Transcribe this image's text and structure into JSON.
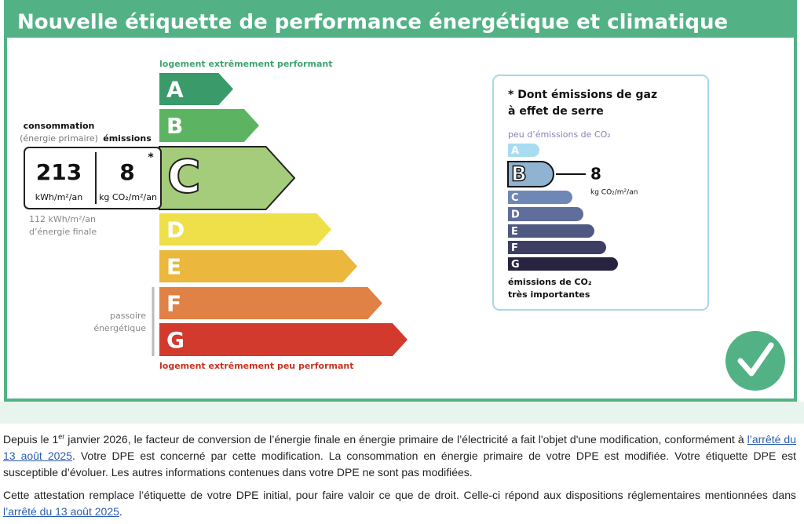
{
  "header": {
    "title": "Nouvelle étiquette de performance énergétique et climatique"
  },
  "energy_label": {
    "top_note": "logement extrêmement performant",
    "bottom_note": "logement extrêmement peu performant",
    "classes": [
      "A",
      "B",
      "C",
      "D",
      "E",
      "F",
      "G"
    ],
    "consumption": {
      "label": "consommation",
      "sublabel": "(énergie primaire)",
      "value": 213,
      "unit": "kWh/m²/an"
    },
    "emissions": {
      "label": "émissions",
      "value": 8,
      "unit": "kg CO₂/m²/an",
      "marker": "*"
    },
    "final_energy": [
      "112 kWh/m²/an",
      "d’énergie finale"
    ],
    "passoire": [
      "passoire",
      "énergétique"
    ]
  },
  "ges_label": {
    "title": [
      "* Dont émissions de gaz",
      "à effet de serre"
    ],
    "top_note": "peu d’émissions de CO₂",
    "classes": [
      "A",
      "B",
      "C",
      "D",
      "E",
      "F",
      "G"
    ],
    "value": 8,
    "unit": "kg CO₂/m²/an",
    "bottom_note": [
      "émissions de CO₂",
      "très importantes"
    ]
  },
  "paragraphs": [
    {
      "before": "Depuis le 1",
      "sup": "er",
      "text": " janvier 2026, le facteur de conversion de l’énergie finale en énergie primaire de l’électricité a fait l'objet d'une modification, conformément à ",
      "link": "l’arrêté du 13 août 2025",
      "after": ". Votre DPE est concerné par cette modification. La consommation en énergie primaire de votre DPE est modifiée. Votre étiquette DPE est susceptible d’évoluer. Les autres informations contenues dans votre DPE ne sont pas modifiées."
    },
    {
      "before": "Cette attestation remplace l’étiquette de votre DPE initial, pour faire valoir ce que de droit. Celle-ci répond aux dispositions réglementaires mentionnées dans ",
      "link": "l’arrêté du 13 août 2025",
      "after": "."
    }
  ]
}
